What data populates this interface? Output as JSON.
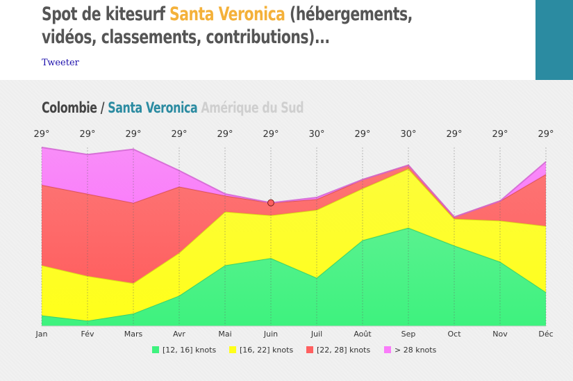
{
  "header": {
    "title_prefix": "Spot de kitesurf ",
    "title_accent": "Santa Veronica",
    "title_suffix": " (hébergements, vidéos, classements, contributions)...",
    "tweet_label": "Tweeter"
  },
  "spot": {
    "country": "Colombie",
    "separator": " / ",
    "name": "Santa Veronica",
    "region": " Amérique du Sud"
  },
  "chart_data": {
    "type": "area",
    "stacked": true,
    "categories": [
      "Jan",
      "Fév",
      "Mars",
      "Avr",
      "Mai",
      "Juin",
      "Juil",
      "Août",
      "Sep",
      "Oct",
      "Nov",
      "Déc"
    ],
    "temperatures": [
      "29°",
      "29°",
      "29°",
      "29°",
      "29°",
      "29°",
      "30°",
      "29°",
      "30°",
      "29°",
      "29°",
      "29°"
    ],
    "ylim": [
      0,
      100
    ],
    "series": [
      {
        "name": "[12, 16] knots",
        "color": "#3ef27e",
        "values": [
          6,
          3,
          7,
          17,
          34,
          38,
          27,
          48,
          55,
          45,
          36,
          19
        ]
      },
      {
        "name": "[16, 22] knots",
        "color": "#ffff1a",
        "values": [
          28,
          25,
          17,
          24,
          30,
          24,
          38,
          29,
          33,
          15,
          23,
          37
        ]
      },
      {
        "name": "[22, 28] knots",
        "color": "#ff6060",
        "values": [
          45,
          46,
          45,
          37,
          9,
          7,
          6,
          5,
          2,
          1,
          11,
          29
        ]
      },
      {
        "name": "> 28 knots",
        "color": "#fa7cfa",
        "values": [
          21,
          22,
          30,
          9,
          1,
          0,
          1,
          0,
          0,
          0,
          0,
          7
        ]
      }
    ],
    "gridlines": "vertical dashed",
    "legend": "bottom"
  }
}
